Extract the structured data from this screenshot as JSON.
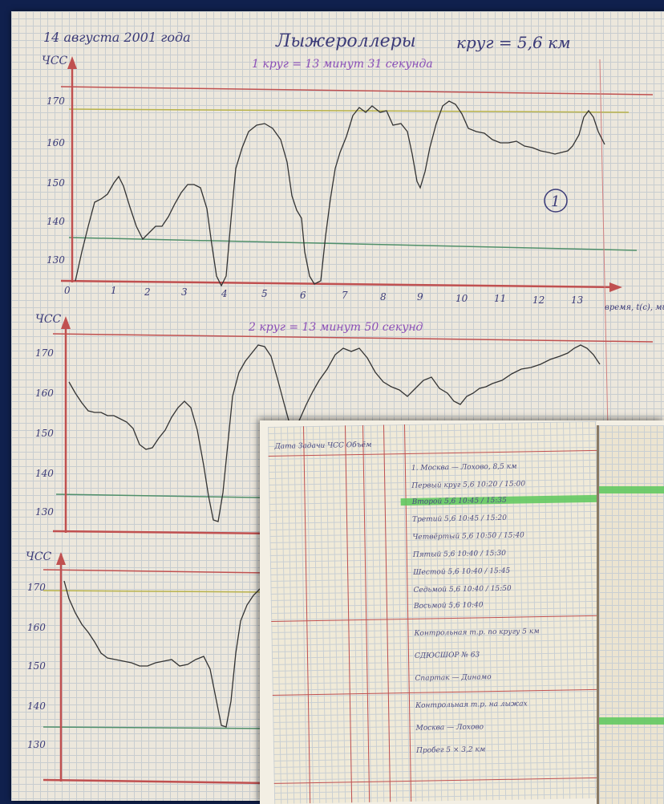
{
  "notebook_page": {
    "header_date": "14 августа 2001 года",
    "header_title": "Лыжероллеры",
    "header_lap": "круг = 5,6 км",
    "chart1_sub": "1 круг = 13 минут 31 секунда",
    "chart2_sub": "2 круг = 13 минут 50 секунд",
    "circle_mark": "1",
    "axis_label_y": "ЧСС",
    "axis_label_x": "время, t(с), минуты",
    "y_ticks_1": [
      "170",
      "160",
      "150",
      "140",
      "130"
    ],
    "y_ticks_2": [
      "170",
      "160",
      "150",
      "140",
      "130"
    ],
    "y_ticks_3": [
      "170",
      "160",
      "150",
      "140",
      "130"
    ],
    "x_ticks_1": [
      "0",
      "1",
      "2",
      "3",
      "4",
      "5",
      "6",
      "7",
      "8",
      "9",
      "10",
      "11",
      "12",
      "13"
    ]
  },
  "ledger": {
    "rows": [
      "Дата   Задачи   ЧСС   Объём",
      "1. Москва — Лохово, 8,5 км",
      "Первый круг 5,6   10:20 / 15:00",
      "Второй   5,6   10:45 / 15:35",
      "Третий   5,6   10:45 / 15:20",
      "Четвёртый 5,6   10:50 / 15:40",
      "Пятый    5,6   10:40 / 15:30",
      "Шестой   5,6   10:40 / 15:45",
      "Седьмой  5,6   10:40 / 15:50",
      "Восьмой  5,6   10:40",
      "Контрольная т.р. по кругу 5 км",
      "СДЮСШОР № 63",
      "Спартак — Динамо",
      "Контрольная т.р. на лыжах",
      "Москва — Лохово",
      "Пробег 5 × 3,2 км"
    ]
  },
  "colors": {
    "ink": "#3b3b78",
    "purple_ink": "#8a4fb8",
    "red_line": "#c05050",
    "green_line": "#4f8f6a",
    "olive_line": "#b8b24a",
    "highlight": "#5cc85a"
  }
}
